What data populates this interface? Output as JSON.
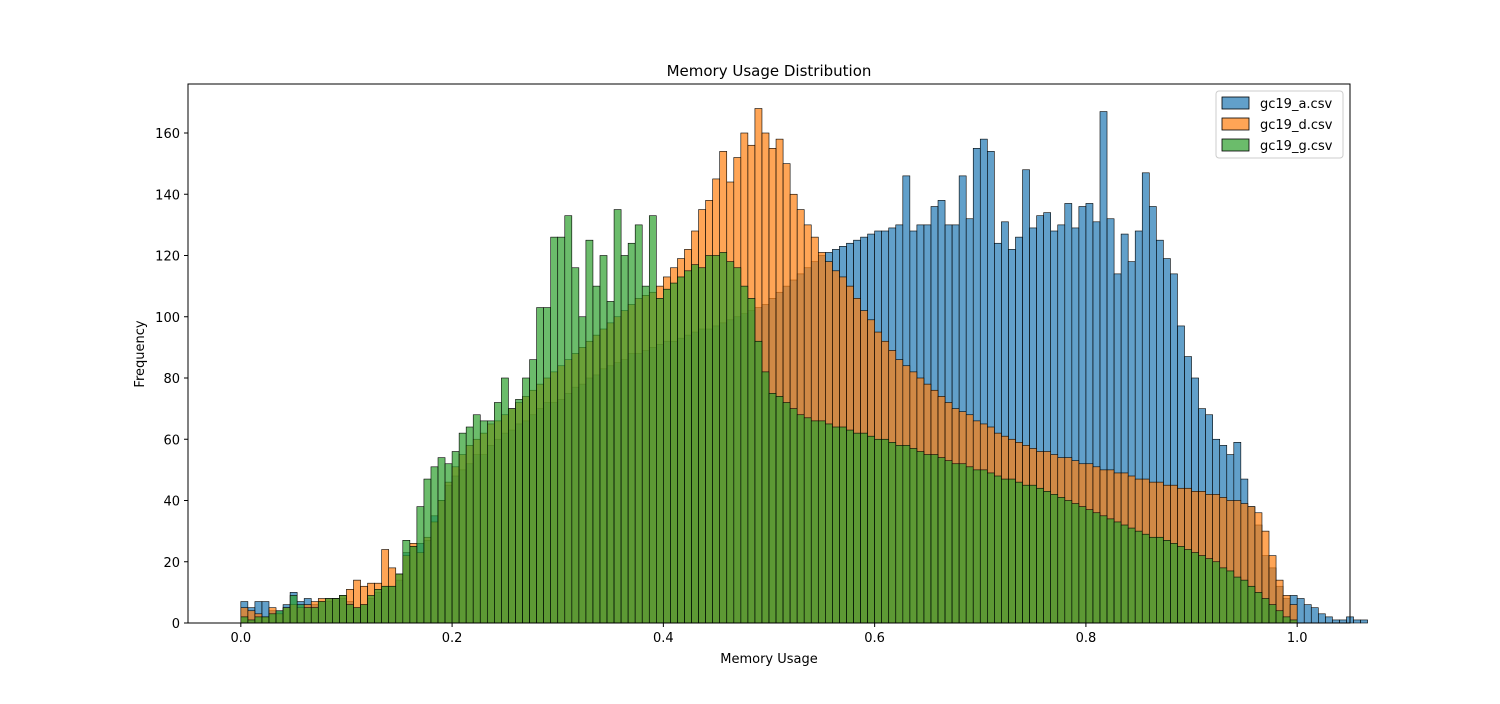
{
  "chart_data": {
    "type": "histogram",
    "title": "Memory Usage Distribution",
    "xlabel": "Memory Usage",
    "ylabel": "Frequency",
    "xlim": [
      -0.05,
      1.05
    ],
    "ylim": [
      0,
      176
    ],
    "x_ticks": [
      0.0,
      0.2,
      0.4,
      0.6,
      0.8,
      1.0
    ],
    "x_tick_labels": [
      "0.0",
      "0.2",
      "0.4",
      "0.6",
      "0.8",
      "1.0"
    ],
    "y_ticks": [
      0,
      20,
      40,
      60,
      80,
      100,
      120,
      140,
      160
    ],
    "y_tick_labels": [
      "0",
      "20",
      "40",
      "60",
      "80",
      "100",
      "120",
      "140",
      "160"
    ],
    "grid": false,
    "legend_position": "top-right",
    "bins": 150,
    "bin_range": [
      0.0,
      1.0
    ],
    "series": [
      {
        "name": "gc19_a.csv",
        "color": "#1f77b4",
        "values": [
          7,
          5,
          7,
          7,
          4,
          4,
          6,
          10,
          7,
          8,
          6,
          7,
          7,
          8,
          8,
          7,
          5,
          6,
          8,
          10,
          12,
          12,
          14,
          23,
          25,
          26,
          27,
          35,
          40,
          45,
          48,
          50,
          52,
          55,
          55,
          58,
          60,
          62,
          63,
          65,
          66,
          68,
          70,
          72,
          72,
          73,
          75,
          77,
          78,
          80,
          81,
          83,
          84,
          85,
          86,
          88,
          88,
          89,
          90,
          91,
          92,
          92,
          93,
          94,
          95,
          96,
          96,
          97,
          98,
          99,
          100,
          101,
          102,
          103,
          104,
          106,
          108,
          110,
          112,
          114,
          116,
          118,
          120,
          121,
          122,
          123,
          124,
          125,
          126,
          127,
          128,
          128,
          129,
          130,
          146,
          128,
          130,
          130,
          136,
          138,
          130,
          130,
          146,
          132,
          155,
          158,
          154,
          124,
          131,
          122,
          126,
          148,
          129,
          133,
          134,
          128,
          130,
          137,
          129,
          136,
          137,
          131,
          167,
          132,
          114,
          127,
          118,
          128,
          147,
          136,
          125,
          119,
          114,
          97,
          87,
          80,
          70,
          68,
          60,
          58,
          55,
          59,
          47,
          38,
          32,
          22,
          18,
          12,
          8,
          9,
          8,
          6,
          5,
          3,
          2,
          1,
          1,
          2,
          1,
          1
        ]
      },
      {
        "name": "gc19_d.csv",
        "color": "#ff7f0e",
        "values": [
          5,
          4,
          3,
          2,
          5,
          3,
          5,
          6,
          5,
          6,
          7,
          8,
          8,
          8,
          9,
          11,
          14,
          12,
          13,
          13,
          24,
          18,
          16,
          22,
          26,
          23,
          28,
          33,
          40,
          46,
          51,
          55,
          58,
          60,
          62,
          65,
          66,
          68,
          70,
          72,
          74,
          76,
          78,
          80,
          82,
          84,
          86,
          88,
          90,
          92,
          94,
          96,
          98,
          100,
          102,
          104,
          106,
          107,
          108,
          110,
          113,
          116,
          119,
          122,
          128,
          135,
          138,
          145,
          154,
          144,
          152,
          160,
          156,
          168,
          160,
          155,
          158,
          150,
          140,
          135,
          130,
          126,
          121,
          118,
          115,
          113,
          110,
          106,
          102,
          99,
          95,
          92,
          89,
          86,
          84,
          82,
          80,
          78,
          76,
          74,
          72,
          70,
          69,
          68,
          66,
          65,
          64,
          62,
          61,
          60,
          59,
          58,
          57,
          56,
          56,
          55,
          54,
          54,
          53,
          52,
          52,
          51,
          50,
          50,
          49,
          49,
          48,
          47,
          47,
          46,
          46,
          45,
          45,
          44,
          44,
          43,
          43,
          42,
          42,
          41,
          40,
          40,
          39,
          38,
          36,
          30,
          22,
          14,
          9,
          6
        ]
      },
      {
        "name": "gc19_g.csv",
        "color": "#2ca02c",
        "values": [
          2,
          1,
          2,
          2,
          3,
          4,
          5,
          9,
          6,
          5,
          5,
          7,
          8,
          8,
          9,
          6,
          5,
          6,
          9,
          11,
          12,
          12,
          16,
          27,
          25,
          38,
          47,
          51,
          54,
          52,
          56,
          62,
          64,
          68,
          66,
          66,
          72,
          80,
          70,
          73,
          80,
          86,
          103,
          103,
          126,
          126,
          133,
          116,
          100,
          125,
          110,
          120,
          105,
          135,
          120,
          124,
          130,
          110,
          133,
          106,
          109,
          111,
          113,
          115,
          117,
          116,
          120,
          120,
          121,
          118,
          116,
          110,
          106,
          92,
          82,
          75,
          74,
          72,
          70,
          68,
          67,
          66,
          66,
          65,
          64,
          64,
          63,
          62,
          62,
          61,
          60,
          60,
          59,
          58,
          58,
          57,
          56,
          55,
          55,
          54,
          53,
          52,
          52,
          51,
          50,
          50,
          49,
          48,
          47,
          47,
          46,
          45,
          45,
          44,
          43,
          42,
          41,
          40,
          39,
          38,
          37,
          36,
          35,
          34,
          33,
          32,
          31,
          30,
          29,
          28,
          28,
          27,
          26,
          25,
          24,
          23,
          22,
          21,
          20,
          18,
          17,
          15,
          14,
          12,
          10,
          8,
          6,
          4,
          2,
          1
        ]
      }
    ]
  }
}
